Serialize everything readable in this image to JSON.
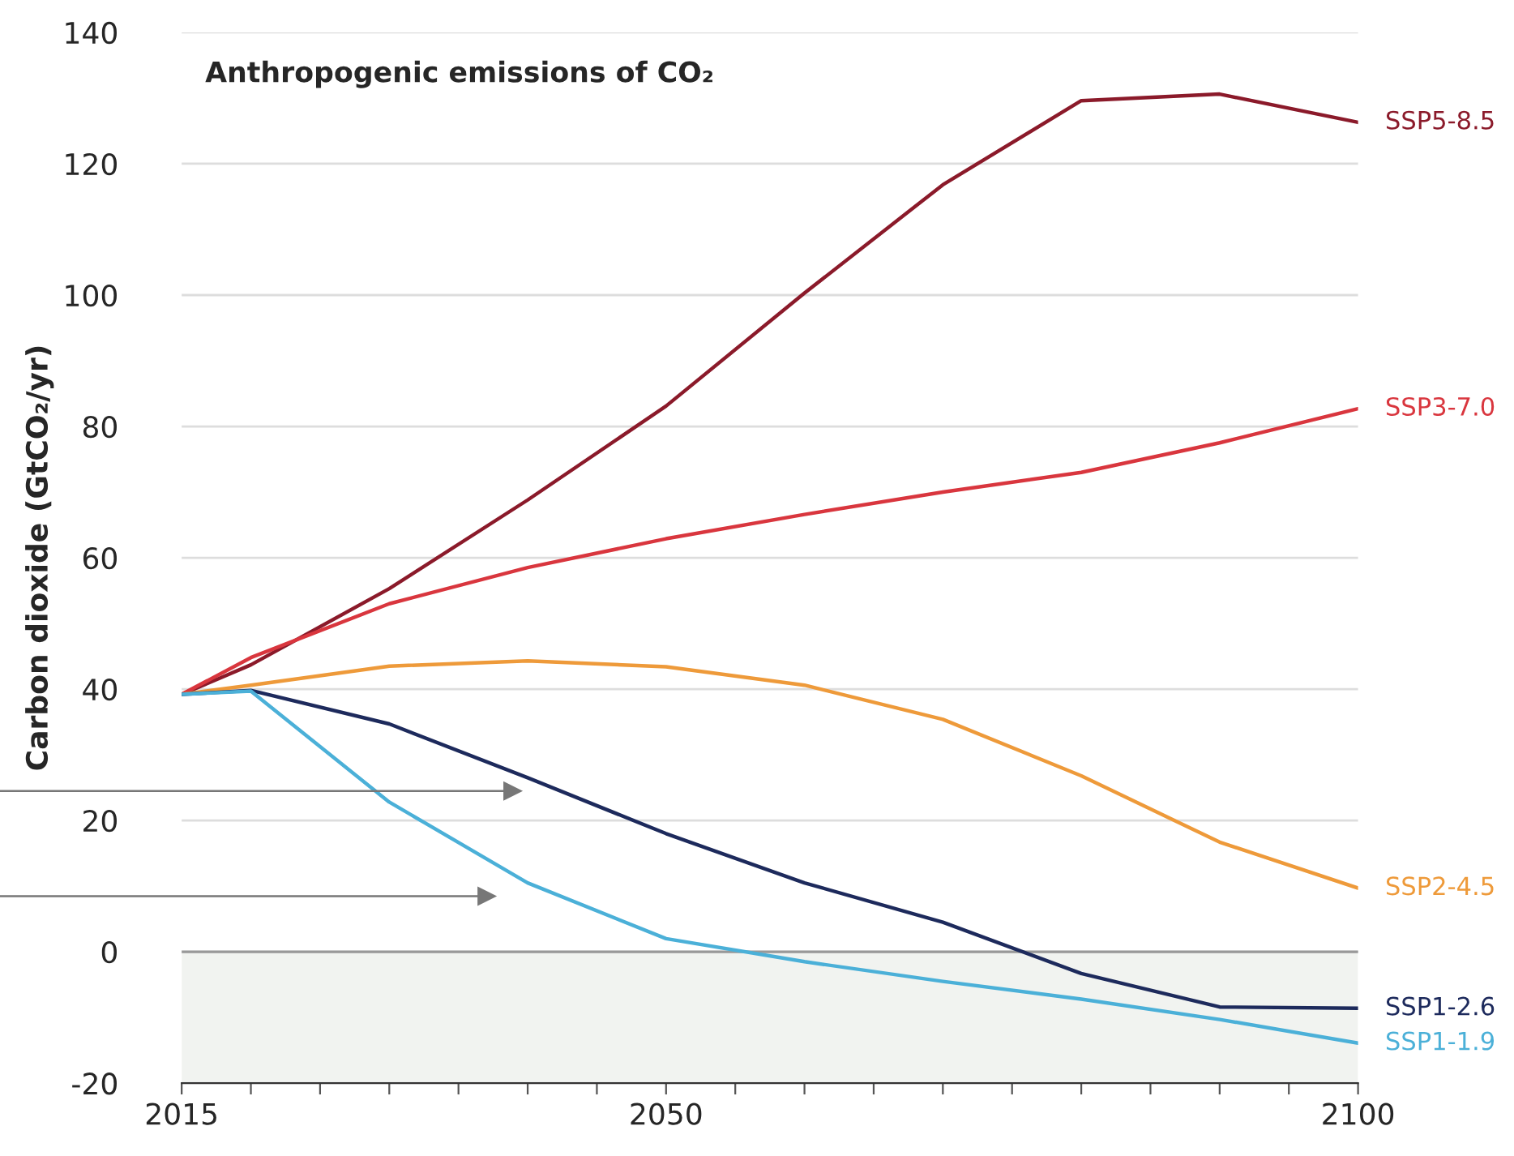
{
  "chart_data": {
    "type": "line",
    "title": "Anthropogenic emissions of CO₂",
    "ylabel": "Carbon dioxide (GtCO₂/yr)",
    "x": [
      2015,
      2020,
      2030,
      2040,
      2050,
      2060,
      2070,
      2080,
      2090,
      2100
    ],
    "series": [
      {
        "name": "SSP5-8.5",
        "color": "#8b1a2a",
        "values": [
          39.2,
          43.7,
          55.3,
          68.8,
          83.1,
          100.3,
          116.8,
          129.6,
          130.6,
          126.3
        ]
      },
      {
        "name": "SSP3-7.0",
        "color": "#d9363e",
        "values": [
          39.2,
          44.8,
          53.0,
          58.5,
          62.9,
          66.6,
          70.0,
          73.0,
          77.5,
          82.7
        ]
      },
      {
        "name": "SSP2-4.5",
        "color": "#ee9a3a",
        "values": [
          39.2,
          40.6,
          43.5,
          44.3,
          43.4,
          40.6,
          35.4,
          26.8,
          16.7,
          9.7
        ]
      },
      {
        "name": "SSP1-2.6",
        "color": "#1d2a5c",
        "values": [
          39.2,
          39.8,
          34.7,
          26.5,
          18.0,
          10.5,
          4.5,
          -3.3,
          -8.4,
          -8.6
        ]
      },
      {
        "name": "SSP1-1.9",
        "color": "#4bb0d8",
        "values": [
          39.2,
          39.7,
          22.8,
          10.5,
          2.0,
          -1.5,
          -4.5,
          -7.2,
          -10.3,
          -13.9
        ]
      }
    ],
    "xlim": [
      2015,
      2100
    ],
    "xticks": [
      2015,
      {
        "value": 2020,
        "label": null
      },
      {
        "value": 2025,
        "label": null
      },
      {
        "value": 2030,
        "label": null
      },
      {
        "value": 2035,
        "label": null
      },
      {
        "value": 2040,
        "label": null
      },
      {
        "value": 2045,
        "label": null
      },
      2050,
      {
        "value": 2055,
        "label": null
      },
      {
        "value": 2060,
        "label": null
      },
      {
        "value": 2065,
        "label": null
      },
      {
        "value": 2070,
        "label": null
      },
      {
        "value": 2075,
        "label": null
      },
      {
        "value": 2080,
        "label": null
      },
      {
        "value": 2085,
        "label": null
      },
      {
        "value": 2090,
        "label": null
      },
      {
        "value": 2095,
        "label": null
      },
      2100
    ],
    "ylim": [
      -20,
      140
    ],
    "yticks": [
      -20,
      0,
      20,
      40,
      60,
      80,
      100,
      120,
      140
    ],
    "ref_lines": [
      {
        "axis": "y",
        "value": 0,
        "label": null,
        "color": "#999999"
      }
    ],
    "bands": [
      {
        "axis": "y",
        "from": -20,
        "to": 0,
        "label": null,
        "color": "#f1f3f0"
      }
    ],
    "grid": "y",
    "legend": false,
    "marker": "none",
    "line_style": "solid"
  }
}
